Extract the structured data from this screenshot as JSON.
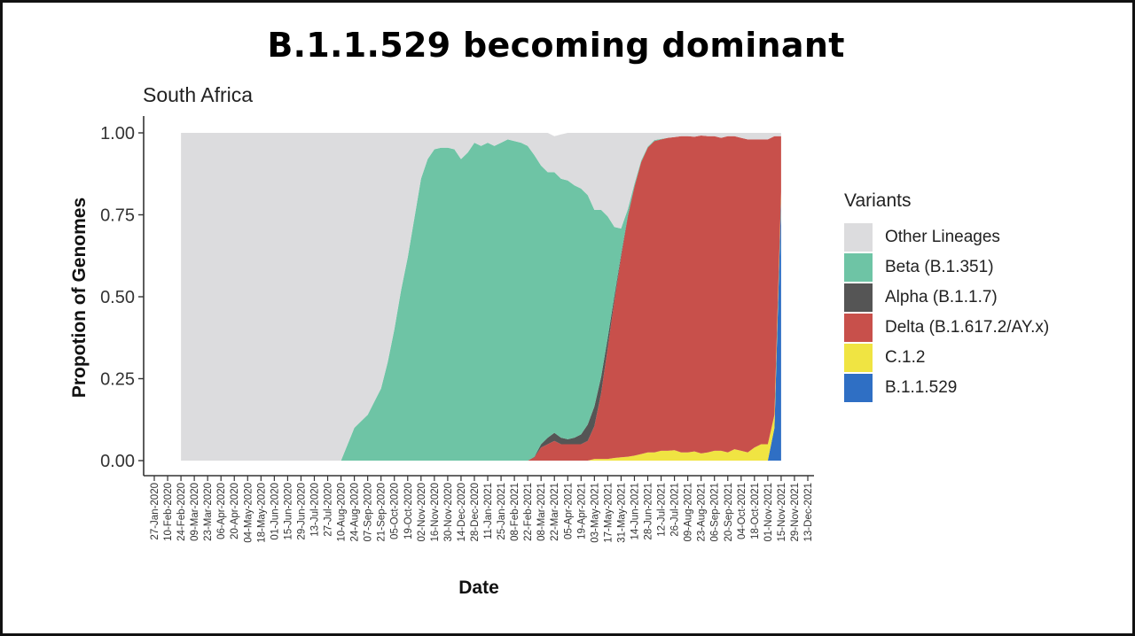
{
  "slide": {
    "title": "B.1.1.529 becoming dominant"
  },
  "chart_data": {
    "type": "area",
    "stacked": "proportion",
    "title": "South Africa",
    "xlabel": "Date",
    "ylabel": "Propotion of Genomes",
    "ylim": [
      0,
      1
    ],
    "yticks": [
      "0.00",
      "0.25",
      "0.50",
      "0.75",
      "1.00"
    ],
    "xlim": [
      "2020-01-27",
      "2021-12-13"
    ],
    "xticks": [
      "27-Jan-2020",
      "10-Feb-2020",
      "24-Feb-2020",
      "09-Mar-2020",
      "23-Mar-2020",
      "06-Apr-2020",
      "20-Apr-2020",
      "04-May-2020",
      "18-May-2020",
      "01-Jun-2020",
      "15-Jun-2020",
      "29-Jun-2020",
      "13-Jul-2020",
      "27-Jul-2020",
      "10-Aug-2020",
      "24-Aug-2020",
      "07-Sep-2020",
      "21-Sep-2020",
      "05-Oct-2020",
      "19-Oct-2020",
      "02-Nov-2020",
      "16-Nov-2020",
      "30-Nov-2020",
      "14-Dec-2020",
      "28-Dec-2020",
      "11-Jan-2021",
      "25-Jan-2021",
      "08-Feb-2021",
      "22-Feb-2021",
      "08-Mar-2021",
      "22-Mar-2021",
      "05-Apr-2021",
      "19-Apr-2021",
      "03-May-2021",
      "17-May-2021",
      "31-May-2021",
      "14-Jun-2021",
      "28-Jun-2021",
      "12-Jul-2021",
      "26-Jul-2021",
      "09-Aug-2021",
      "23-Aug-2021",
      "06-Sep-2021",
      "20-Sep-2021",
      "04-Oct-2021",
      "18-Oct-2021",
      "01-Nov-2021",
      "15-Nov-2021",
      "29-Nov-2021",
      "13-Dec-2021"
    ],
    "x": [
      "2020-02-24",
      "2020-03-09",
      "2020-03-23",
      "2020-04-06",
      "2020-04-20",
      "2020-05-04",
      "2020-05-18",
      "2020-06-01",
      "2020-06-15",
      "2020-06-29",
      "2020-07-13",
      "2020-07-27",
      "2020-08-10",
      "2020-08-17",
      "2020-08-24",
      "2020-08-31",
      "2020-09-07",
      "2020-09-14",
      "2020-09-21",
      "2020-09-28",
      "2020-10-05",
      "2020-10-12",
      "2020-10-19",
      "2020-10-26",
      "2020-11-02",
      "2020-11-09",
      "2020-11-16",
      "2020-11-23",
      "2020-11-30",
      "2020-12-07",
      "2020-12-14",
      "2020-12-21",
      "2020-12-28",
      "2021-01-04",
      "2021-01-11",
      "2021-01-18",
      "2021-01-25",
      "2021-02-01",
      "2021-02-08",
      "2021-02-15",
      "2021-02-22",
      "2021-03-01",
      "2021-03-08",
      "2021-03-15",
      "2021-03-22",
      "2021-03-29",
      "2021-04-05",
      "2021-04-12",
      "2021-04-19",
      "2021-04-26",
      "2021-05-03",
      "2021-05-10",
      "2021-05-17",
      "2021-05-24",
      "2021-05-31",
      "2021-06-07",
      "2021-06-14",
      "2021-06-21",
      "2021-06-28",
      "2021-07-05",
      "2021-07-12",
      "2021-07-19",
      "2021-07-26",
      "2021-08-02",
      "2021-08-09",
      "2021-08-16",
      "2021-08-23",
      "2021-08-30",
      "2021-09-06",
      "2021-09-13",
      "2021-09-20",
      "2021-09-27",
      "2021-10-04",
      "2021-10-11",
      "2021-10-18",
      "2021-10-25",
      "2021-11-01",
      "2021-11-08",
      "2021-11-15"
    ],
    "series": [
      {
        "name": "B.1.1.529",
        "color": "#2f6fc4",
        "values": [
          0,
          0,
          0,
          0,
          0,
          0,
          0,
          0,
          0,
          0,
          0,
          0,
          0,
          0,
          0,
          0,
          0,
          0,
          0,
          0,
          0,
          0,
          0,
          0,
          0,
          0,
          0,
          0,
          0,
          0,
          0,
          0,
          0,
          0,
          0,
          0,
          0,
          0,
          0,
          0,
          0,
          0,
          0,
          0,
          0,
          0,
          0,
          0,
          0,
          0,
          0,
          0,
          0,
          0,
          0,
          0,
          0,
          0,
          0,
          0,
          0,
          0,
          0,
          0,
          0,
          0,
          0,
          0,
          0,
          0,
          0,
          0,
          0,
          0,
          0,
          0,
          0,
          0.1,
          0.8
        ]
      },
      {
        "name": "C.1.2",
        "color": "#f0e442",
        "values": [
          0,
          0,
          0,
          0,
          0,
          0,
          0,
          0,
          0,
          0,
          0,
          0,
          0,
          0,
          0,
          0,
          0,
          0,
          0,
          0,
          0,
          0,
          0,
          0,
          0,
          0,
          0,
          0,
          0,
          0,
          0,
          0,
          0,
          0,
          0,
          0,
          0,
          0,
          0,
          0,
          0,
          0,
          0,
          0,
          0,
          0,
          0,
          0,
          0,
          0,
          0.005,
          0.005,
          0.005,
          0.008,
          0.01,
          0.012,
          0.015,
          0.02,
          0.025,
          0.025,
          0.03,
          0.03,
          0.032,
          0.025,
          0.025,
          0.028,
          0.022,
          0.025,
          0.03,
          0.03,
          0.025,
          0.035,
          0.03,
          0.025,
          0.04,
          0.05,
          0.05,
          0.04,
          0.02
        ]
      },
      {
        "name": "Delta (B.1.617.2/AY.x)",
        "color": "#c8504b",
        "values": [
          0,
          0,
          0,
          0,
          0,
          0,
          0,
          0,
          0,
          0,
          0,
          0,
          0,
          0,
          0,
          0,
          0,
          0,
          0,
          0,
          0,
          0,
          0,
          0,
          0,
          0,
          0,
          0,
          0,
          0,
          0,
          0,
          0,
          0,
          0,
          0,
          0,
          0,
          0,
          0,
          0,
          0.01,
          0.04,
          0.05,
          0.06,
          0.05,
          0.05,
          0.05,
          0.05,
          0.06,
          0.1,
          0.2,
          0.34,
          0.48,
          0.61,
          0.73,
          0.82,
          0.89,
          0.93,
          0.95,
          0.95,
          0.955,
          0.955,
          0.965,
          0.965,
          0.96,
          0.97,
          0.965,
          0.96,
          0.955,
          0.965,
          0.955,
          0.955,
          0.955,
          0.94,
          0.93,
          0.93,
          0.85,
          0.17
        ]
      },
      {
        "name": "Alpha (B.1.1.7)",
        "color": "#555555",
        "values": [
          0,
          0,
          0,
          0,
          0,
          0,
          0,
          0,
          0,
          0,
          0,
          0,
          0,
          0,
          0,
          0,
          0,
          0,
          0,
          0,
          0,
          0,
          0,
          0,
          0,
          0,
          0,
          0,
          0,
          0,
          0,
          0,
          0,
          0,
          0,
          0,
          0,
          0,
          0,
          0,
          0,
          0.002,
          0.01,
          0.02,
          0.025,
          0.02,
          0.015,
          0.02,
          0.03,
          0.05,
          0.06,
          0.05,
          0.03,
          0.015,
          0.008,
          0.004,
          0.002,
          0,
          0,
          0,
          0,
          0,
          0,
          0,
          0,
          0,
          0,
          0,
          0,
          0,
          0,
          0,
          0,
          0,
          0,
          0,
          0,
          0,
          0
        ]
      },
      {
        "name": "Beta (B.1.351)",
        "color": "#6ec4a5",
        "values": [
          0,
          0,
          0,
          0,
          0,
          0,
          0,
          0,
          0,
          0,
          0,
          0,
          0,
          0.05,
          0.1,
          0.12,
          0.14,
          0.18,
          0.22,
          0.3,
          0.4,
          0.52,
          0.62,
          0.74,
          0.86,
          0.92,
          0.95,
          0.955,
          0.955,
          0.95,
          0.92,
          0.94,
          0.97,
          0.96,
          0.97,
          0.96,
          0.97,
          0.98,
          0.975,
          0.97,
          0.96,
          0.92,
          0.85,
          0.81,
          0.795,
          0.79,
          0.79,
          0.77,
          0.75,
          0.7,
          0.6,
          0.51,
          0.37,
          0.21,
          0.08,
          0.02,
          0.008,
          0.005,
          0.003,
          0.003,
          0.002,
          0,
          0,
          0,
          0,
          0,
          0,
          0,
          0,
          0,
          0,
          0,
          0,
          0,
          0,
          0,
          0,
          0,
          0
        ]
      },
      {
        "name": "Other Lineages",
        "color": "#dcdcde",
        "values": [
          1,
          1,
          1,
          1,
          1,
          1,
          1,
          1,
          1,
          1,
          1,
          1,
          1,
          0.95,
          0.9,
          0.88,
          0.86,
          0.82,
          0.78,
          0.7,
          0.6,
          0.48,
          0.38,
          0.26,
          0.14,
          0.08,
          0.05,
          0.045,
          0.045,
          0.05,
          0.08,
          0.06,
          0.03,
          0.04,
          0.03,
          0.04,
          0.03,
          0.02,
          0.025,
          0.03,
          0.04,
          0.068,
          0.1,
          0.12,
          0.11,
          0.135,
          0.145,
          0.16,
          0.17,
          0.19,
          0.235,
          0.235,
          0.255,
          0.287,
          0.292,
          0.234,
          0.155,
          0.085,
          0.042,
          0.022,
          0.018,
          0.015,
          0.013,
          0.01,
          0.01,
          0.012,
          0.008,
          0.01,
          0.01,
          0.015,
          0.01,
          0.01,
          0.015,
          0.02,
          0.02,
          0.02,
          0.02,
          0.01,
          0.01
        ]
      }
    ],
    "legend": {
      "title": "Variants",
      "position": "right",
      "items": [
        {
          "label": "Other Lineages",
          "color": "#dcdcde"
        },
        {
          "label": "Beta (B.1.351)",
          "color": "#6ec4a5"
        },
        {
          "label": "Alpha (B.1.1.7)",
          "color": "#555555"
        },
        {
          "label": "Delta (B.1.617.2/AY.x)",
          "color": "#c8504b"
        },
        {
          "label": "C.1.2",
          "color": "#f0e442"
        },
        {
          "label": "B.1.1.529",
          "color": "#2f6fc4"
        }
      ]
    },
    "grid": false
  }
}
